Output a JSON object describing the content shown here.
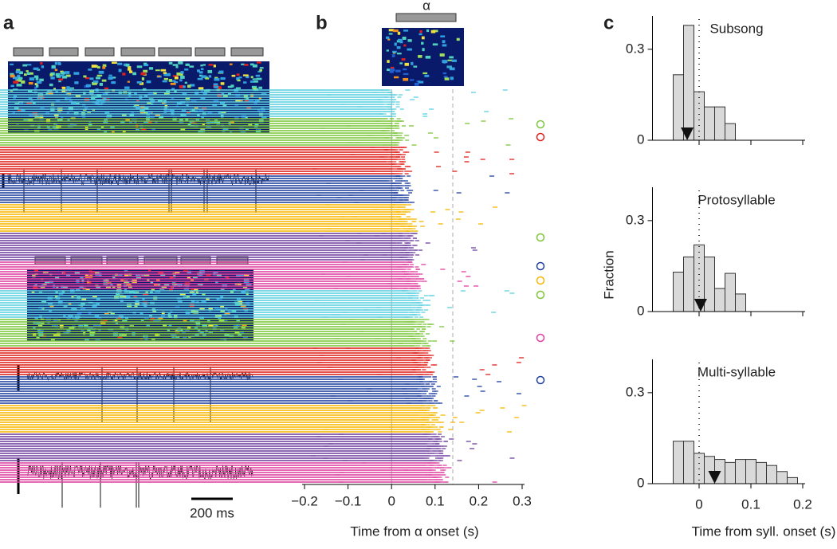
{
  "panel_labels": [
    "a",
    "b",
    "c"
  ],
  "panel_a": {
    "scale_bar": "200 ms"
  },
  "chart_data": [
    {
      "type": "raster",
      "event_label": "α",
      "xlabel": "Time from α onset (s)",
      "xlim": [
        -0.2,
        0.3
      ],
      "xticks": [
        {
          "value": -0.2,
          "label": "−0.2"
        },
        {
          "value": -0.1,
          "label": "−0.1"
        },
        0,
        0.1,
        0.2,
        0.3
      ]
    },
    {
      "type": "histogram",
      "title": "Subsong",
      "color": "#d9d9d9",
      "bins": [
        -0.05,
        -0.03,
        -0.01,
        0.01,
        0.03,
        0.05,
        0.07
      ],
      "values": [
        0.216,
        0.379,
        0.16,
        0.11,
        0.11,
        0.055
      ],
      "marker": -0.023,
      "xlim": [
        -0.09,
        0.2
      ],
      "ylim": [
        0,
        0.41
      ],
      "xticks": [
        0,
        0.1,
        0.2
      ],
      "yticks": [
        0,
        0.3
      ]
    },
    {
      "type": "histogram",
      "title": "Protosyllable",
      "color": "#d9d9d9",
      "bins": [
        -0.05,
        -0.03,
        -0.01,
        0.01,
        0.03,
        0.05,
        0.07,
        0.09
      ],
      "values": [
        0.13,
        0.18,
        0.22,
        0.18,
        0.076,
        0.126,
        0.058
      ],
      "marker": 0.003,
      "xlim": [
        -0.09,
        0.2
      ],
      "ylim": [
        0,
        0.41
      ],
      "xticks": [
        0,
        0.1,
        0.2
      ],
      "yticks": [
        0,
        0.3
      ]
    },
    {
      "type": "histogram",
      "title": "Multi-syllable",
      "color": "#d9d9d9",
      "bins": [
        -0.05,
        -0.03,
        -0.01,
        0.01,
        0.03,
        0.05,
        0.07,
        0.09,
        0.11,
        0.13,
        0.15,
        0.17,
        0.19
      ],
      "values": [
        0.14,
        0.14,
        0.1,
        0.09,
        0.08,
        0.07,
        0.08,
        0.08,
        0.07,
        0.06,
        0.04,
        0.02
      ],
      "marker": 0.03,
      "xlim": [
        -0.09,
        0.2
      ],
      "ylim": [
        0,
        0.41
      ],
      "xticks": [
        0,
        0.1,
        0.2
      ],
      "yticks": [
        0,
        0.3
      ],
      "xlabel": "Time from syll. onset (s)",
      "ylabel": "Fraction"
    }
  ]
}
